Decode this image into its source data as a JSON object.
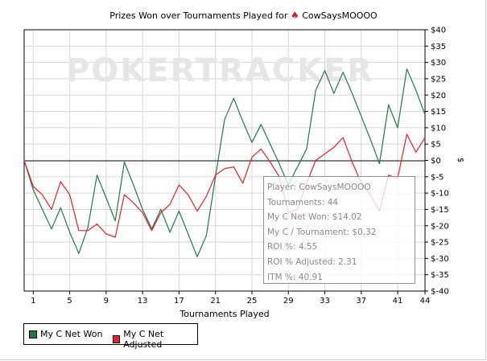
{
  "title": {
    "prefix": "Prizes Won over Tournaments Played for",
    "suit_icon": "spade-icon",
    "player": "CowSaysMOOOO"
  },
  "watermark": "POKERTRACKER",
  "info_box": {
    "lines": [
      "Player: CowSaysMOOOO",
      "Tournaments: 44",
      "My C Net Won: $14.02",
      "My C / Tournament: $0.32",
      "ROI %: 4.55",
      "ROI % Adjusted: 2.31",
      "ITM %: 40.91"
    ]
  },
  "legend": {
    "items": [
      "My C Net Won",
      "My C Net Adjusted"
    ]
  },
  "colors": {
    "won": "#1e7a46",
    "adjusted": "#e8202a",
    "zero_line": "#000000",
    "grid": "#d6d6d6"
  },
  "chart_data": {
    "type": "line",
    "title": "Prizes Won over Tournaments Played for CowSaysMOOOO",
    "xlabel": "Tournaments Played",
    "ylabel": "$",
    "xlim": [
      0,
      44
    ],
    "ylim": [
      -40,
      40
    ],
    "x_ticks": [
      1,
      5,
      9,
      13,
      17,
      21,
      25,
      29,
      33,
      37,
      41,
      44
    ],
    "y_ticks": [
      40,
      35,
      30,
      25,
      20,
      15,
      10,
      5,
      0,
      -5,
      -10,
      -15,
      -20,
      -25,
      -30,
      -35,
      -40
    ],
    "y_tick_labels": [
      "$40",
      "$35",
      "$30",
      "$25",
      "$20",
      "$15",
      "$10",
      "$5",
      "$0",
      "$-5",
      "$-10",
      "$-15",
      "$-20",
      "$-25",
      "$-30",
      "$-35",
      "$-40"
    ],
    "grid": true,
    "legend": "bottom-left",
    "x": [
      0,
      1,
      2,
      3,
      4,
      5,
      6,
      7,
      8,
      9,
      10,
      11,
      12,
      13,
      14,
      15,
      16,
      17,
      18,
      19,
      20,
      21,
      22,
      23,
      24,
      25,
      26,
      27,
      28,
      29,
      30,
      31,
      32,
      33,
      34,
      35,
      36,
      37,
      38,
      39,
      40,
      41,
      42,
      43,
      44
    ],
    "series": [
      {
        "name": "My C Net Won",
        "values": [
          0,
          -9,
          -15,
          -21,
          -14.5,
          -22,
          -28.5,
          -20.5,
          -4.5,
          -11.5,
          -18.5,
          -0.5,
          -7.5,
          -15,
          -21,
          -15,
          -22,
          -15.5,
          -22.5,
          -29.5,
          -23,
          -5,
          12.5,
          19,
          12,
          5.5,
          11,
          5,
          -1,
          -7.5,
          -2,
          3.5,
          21.5,
          27.5,
          20.5,
          27,
          20.5,
          13.5,
          6.5,
          -1,
          17,
          10,
          28,
          21.5,
          14
        ]
      },
      {
        "name": "My C Net Adjusted",
        "values": [
          0,
          -8,
          -10.5,
          -15,
          -6.5,
          -10.5,
          -21.5,
          -21.5,
          -19.5,
          -22.5,
          -23.5,
          -10.5,
          -13,
          -16,
          -21.5,
          -16,
          -13.5,
          -7.5,
          -10.5,
          -15.5,
          -11,
          -4.5,
          -2.5,
          -2,
          -7,
          1,
          3.5,
          -0.5,
          -5,
          -16,
          -15,
          -7,
          0,
          2,
          4,
          7,
          -0.5,
          -7,
          -10.5,
          -15.5,
          -4.5,
          -5.5,
          8,
          2.5,
          7
        ]
      }
    ]
  }
}
